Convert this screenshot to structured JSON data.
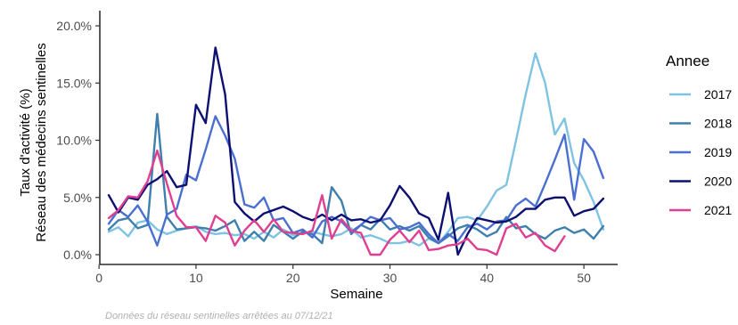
{
  "chart_data": {
    "type": "line",
    "xlabel": "Semaine",
    "ylabel_line1": "Taux d'activité (%)",
    "ylabel_line2": "Réseau des médecins sentinelles",
    "caption": "Données du réseau sentinelles arrêtées au  07/12/21",
    "xlim": [
      0,
      53
    ],
    "ylim": [
      0,
      20
    ],
    "xticks": [
      0,
      10,
      20,
      30,
      40,
      50
    ],
    "xtick_labels": [
      "0",
      "10",
      "20",
      "30",
      "40",
      "50"
    ],
    "yticks": [
      0,
      5,
      10,
      15,
      20
    ],
    "ytick_labels": [
      "0.0%",
      "5.0%",
      "10.0%",
      "15.0%",
      "20.0%"
    ],
    "grid": false,
    "legend": {
      "title": "Annee",
      "position": "right"
    },
    "series": [
      {
        "name": "2017",
        "color": "#7fc3e3",
        "x": [
          1,
          2,
          3,
          4,
          5,
          6,
          7,
          8,
          9,
          10,
          11,
          12,
          13,
          14,
          15,
          16,
          17,
          18,
          19,
          20,
          21,
          22,
          23,
          24,
          25,
          26,
          27,
          28,
          29,
          30,
          31,
          32,
          33,
          34,
          35,
          36,
          37,
          38,
          39,
          40,
          41,
          42,
          43,
          44,
          45,
          46,
          47,
          48,
          49,
          50,
          51,
          52
        ],
        "values": [
          2.0,
          2.4,
          1.6,
          2.8,
          3.0,
          2.2,
          1.8,
          2.1,
          2.3,
          2.5,
          2.0,
          1.8,
          1.9,
          1.7,
          1.8,
          1.4,
          2.0,
          1.5,
          2.2,
          1.7,
          1.9,
          2.0,
          1.8,
          1.6,
          1.8,
          2.3,
          1.5,
          1.7,
          1.4,
          1.0,
          1.0,
          1.2,
          0.8,
          1.4,
          1.0,
          2.0,
          3.2,
          3.3,
          3.0,
          4.2,
          5.6,
          6.1,
          10.0,
          14.0,
          17.6,
          15.0,
          10.5,
          11.9,
          8.0,
          6.5,
          4.6,
          2.2
        ]
      },
      {
        "name": "2018",
        "color": "#3f7fad",
        "x": [
          1,
          2,
          3,
          4,
          5,
          6,
          7,
          8,
          9,
          10,
          11,
          12,
          13,
          14,
          15,
          16,
          17,
          18,
          19,
          20,
          21,
          22,
          23,
          24,
          25,
          26,
          27,
          28,
          29,
          30,
          31,
          32,
          33,
          34,
          35,
          36,
          37,
          38,
          39,
          40,
          41,
          42,
          43,
          44,
          45,
          46,
          47,
          48,
          49,
          50,
          51,
          52
        ],
        "values": [
          2.2,
          3.0,
          3.2,
          2.3,
          2.6,
          12.3,
          3.3,
          2.2,
          2.3,
          2.4,
          2.3,
          2.1,
          2.5,
          3.0,
          1.2,
          2.0,
          1.2,
          2.6,
          2.0,
          1.4,
          2.0,
          1.8,
          1.0,
          5.9,
          4.7,
          1.8,
          2.6,
          2.2,
          3.1,
          2.2,
          2.5,
          2.1,
          2.5,
          1.5,
          1.0,
          1.6,
          2.3,
          2.6,
          2.2,
          1.6,
          2.0,
          3.3,
          2.3,
          2.5,
          1.8,
          1.4,
          2.1,
          2.4,
          1.9,
          2.2,
          1.4,
          2.5
        ]
      },
      {
        "name": "2019",
        "color": "#4a6fd0",
        "x": [
          1,
          2,
          3,
          4,
          5,
          6,
          7,
          8,
          9,
          10,
          11,
          12,
          13,
          14,
          15,
          16,
          17,
          18,
          19,
          20,
          21,
          22,
          23,
          24,
          25,
          26,
          27,
          28,
          29,
          30,
          31,
          32,
          33,
          34,
          35,
          36,
          37,
          38,
          39,
          40,
          41,
          42,
          43,
          44,
          45,
          46,
          47,
          48,
          49,
          50,
          51,
          52
        ],
        "values": [
          2.7,
          3.9,
          3.3,
          4.3,
          2.9,
          0.8,
          3.5,
          4.0,
          7.0,
          6.5,
          9.2,
          12.1,
          10.4,
          8.4,
          4.4,
          4.1,
          5.0,
          3.0,
          3.2,
          1.9,
          2.2,
          1.5,
          2.9,
          3.3,
          2.9,
          2.0,
          2.6,
          3.3,
          3.0,
          3.2,
          2.2,
          2.4,
          2.8,
          1.8,
          1.0,
          1.8,
          1.2,
          2.4,
          2.7,
          2.2,
          2.9,
          3.0,
          4.3,
          4.9,
          4.2,
          6.2,
          8.3,
          10.5,
          4.8,
          10.1,
          9.0,
          6.7
        ]
      },
      {
        "name": "2020",
        "color": "#0d1070",
        "x": [
          1,
          2,
          3,
          4,
          5,
          6,
          7,
          8,
          9,
          10,
          11,
          12,
          13,
          14,
          15,
          16,
          17,
          18,
          19,
          20,
          21,
          22,
          23,
          24,
          25,
          26,
          27,
          28,
          29,
          30,
          31,
          32,
          33,
          34,
          35,
          36,
          37,
          38,
          39,
          40,
          41,
          42,
          43,
          44,
          45,
          46,
          47,
          48,
          49,
          50,
          51,
          52
        ],
        "values": [
          5.2,
          3.7,
          5.0,
          4.8,
          6.1,
          6.6,
          7.3,
          5.9,
          6.1,
          13.1,
          11.5,
          18.1,
          14.0,
          4.6,
          3.6,
          2.9,
          3.6,
          3.9,
          4.2,
          3.8,
          3.3,
          3.0,
          3.5,
          3.0,
          3.5,
          3.0,
          3.1,
          2.8,
          3.0,
          4.3,
          6.0,
          5.0,
          3.6,
          3.2,
          1.3,
          5.4,
          0.0,
          1.8,
          3.2,
          3.0,
          2.8,
          2.9,
          3.3,
          4.0,
          4.0,
          4.8,
          5.0,
          5.0,
          3.4,
          3.8,
          4.0,
          4.9
        ]
      },
      {
        "name": "2021",
        "color": "#e03f91",
        "x": [
          1,
          2,
          3,
          4,
          5,
          6,
          7,
          8,
          9,
          10,
          11,
          12,
          13,
          14,
          15,
          16,
          17,
          18,
          19,
          20,
          21,
          22,
          23,
          24,
          25,
          26,
          27,
          28,
          29,
          30,
          31,
          32,
          33,
          34,
          35,
          36,
          37,
          38,
          39,
          40,
          41,
          42,
          43,
          44,
          45,
          46,
          47,
          48
        ],
        "values": [
          3.2,
          3.9,
          5.1,
          5.0,
          6.4,
          9.1,
          6.2,
          3.4,
          2.4,
          2.4,
          1.2,
          3.4,
          2.8,
          0.8,
          2.1,
          3.0,
          2.0,
          3.1,
          2.0,
          1.9,
          1.8,
          2.1,
          5.2,
          1.4,
          3.1,
          2.1,
          1.9,
          0.0,
          0.0,
          1.3,
          2.1,
          1.1,
          2.1,
          0.4,
          0.5,
          0.8,
          0.9,
          1.4,
          0.5,
          0.4,
          0.0,
          2.3,
          2.7,
          1.5,
          1.9,
          0.8,
          0.3,
          1.6
        ]
      }
    ]
  }
}
